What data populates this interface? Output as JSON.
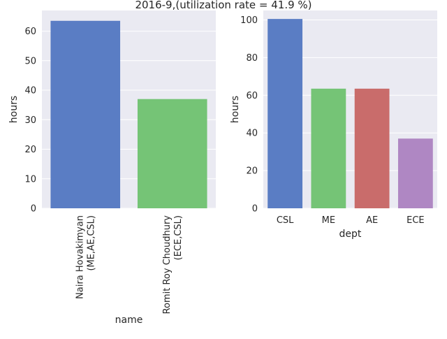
{
  "title": "2016-9,(utilization rate = 41.9 %)",
  "background_color": "#eaeaf2",
  "grid": true,
  "charts": [
    {
      "type": "bar",
      "xlabel": "name",
      "ylabel": "hours",
      "ylim": [
        0,
        67
      ],
      "yticks": [
        0,
        10,
        20,
        30,
        40,
        50,
        60
      ],
      "x_tick_rotation": "vertical",
      "categories": [
        [
          "Naira Hovakimyan",
          "(ME,AE,CSL)"
        ],
        [
          "Romit Roy Choudhury",
          "(ECE,CSL)"
        ]
      ],
      "values": [
        63.5,
        37
      ],
      "colors": [
        "#5a7dc4",
        "#75c476"
      ]
    },
    {
      "type": "bar",
      "xlabel": "dept",
      "ylabel": "hours",
      "ylim": [
        0,
        105
      ],
      "yticks": [
        0,
        20,
        40,
        60,
        80,
        100
      ],
      "x_tick_rotation": "horizontal",
      "categories": [
        "CSL",
        "ME",
        "AE",
        "ECE"
      ],
      "values": [
        100.5,
        63.5,
        63.5,
        37
      ],
      "colors": [
        "#5a7dc4",
        "#75c476",
        "#c96c6b",
        "#af87c3"
      ]
    }
  ]
}
